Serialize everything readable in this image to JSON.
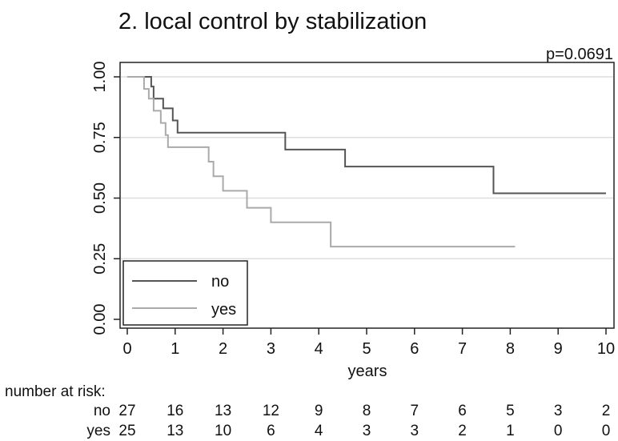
{
  "chart_data": {
    "type": "line",
    "title": "2. local control by stabilization",
    "annotation": "p=0.0691",
    "xlabel": "years",
    "ylabel": "",
    "xlim": [
      0,
      10
    ],
    "ylim": [
      0,
      1
    ],
    "x_ticks": [
      "0",
      "1",
      "2",
      "3",
      "4",
      "5",
      "6",
      "7",
      "8",
      "9",
      "10"
    ],
    "y_ticks": [
      "0.00",
      "0.25",
      "0.50",
      "0.75",
      "1.00"
    ],
    "y_tick_values": [
      0,
      0.25,
      0.5,
      0.75,
      1
    ],
    "grid": true,
    "legend_position": "bottom-left",
    "series": [
      {
        "name": "no",
        "color": "#555555",
        "steps": [
          [
            0,
            1.0
          ],
          [
            0.5,
            0.96
          ],
          [
            0.55,
            0.91
          ],
          [
            0.75,
            0.87
          ],
          [
            0.95,
            0.82
          ],
          [
            1.05,
            0.77
          ],
          [
            3.3,
            0.7
          ],
          [
            4.55,
            0.63
          ],
          [
            7.65,
            0.52
          ],
          [
            10.0,
            0.52
          ]
        ]
      },
      {
        "name": "yes",
        "color": "#aaaaaa",
        "steps": [
          [
            0,
            1.0
          ],
          [
            0.35,
            0.95
          ],
          [
            0.45,
            0.91
          ],
          [
            0.55,
            0.86
          ],
          [
            0.7,
            0.81
          ],
          [
            0.8,
            0.76
          ],
          [
            0.85,
            0.71
          ],
          [
            1.7,
            0.65
          ],
          [
            1.8,
            0.59
          ],
          [
            2.0,
            0.53
          ],
          [
            2.5,
            0.46
          ],
          [
            3.0,
            0.4
          ],
          [
            4.25,
            0.3
          ],
          [
            8.1,
            0.3
          ]
        ]
      }
    ],
    "risk_table": {
      "title": "number at risk:",
      "rows": [
        {
          "label": "no",
          "values": [
            "27",
            "16",
            "13",
            "12",
            "9",
            "8",
            "7",
            "6",
            "5",
            "3",
            "2"
          ]
        },
        {
          "label": "yes",
          "values": [
            "25",
            "13",
            "10",
            "6",
            "4",
            "3",
            "3",
            "2",
            "1",
            "0",
            "0"
          ]
        }
      ]
    }
  }
}
